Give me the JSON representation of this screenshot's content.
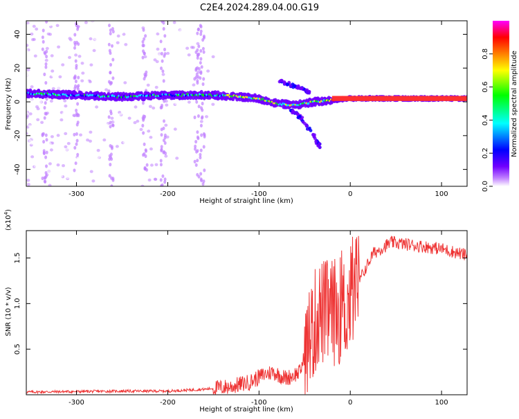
{
  "title": "C2E4.2024.289.04.00.G19",
  "chart_data": [
    {
      "type": "heatmap",
      "xlabel": "Height of straight line (km)",
      "ylabel": "Frequency (Hz)",
      "xlim": [
        -355,
        128
      ],
      "ylim": [
        -50,
        48
      ],
      "xticks": [
        -300,
        -200,
        -100,
        0,
        100
      ],
      "yticks": [
        -40,
        -20,
        0,
        20,
        40
      ],
      "colorbar": {
        "label": "Normalized spectral amplitude",
        "range": [
          0,
          1
        ],
        "ticks": [
          "0.0",
          "0.2",
          "0.4",
          "0.6",
          "0.8"
        ],
        "colors": [
          "#ffffff",
          "#c080ff",
          "#7000ff",
          "#0000ff",
          "#00ffff",
          "#00ff00",
          "#ffff00",
          "#ff8000",
          "#ff0000",
          "#ff00ff"
        ]
      },
      "ridge": [
        {
          "x": -355,
          "y": 5
        },
        {
          "x": -300,
          "y": 4
        },
        {
          "x": -250,
          "y": 3
        },
        {
          "x": -200,
          "y": 4
        },
        {
          "x": -150,
          "y": 4
        },
        {
          "x": -120,
          "y": 3
        },
        {
          "x": -100,
          "y": 2
        },
        {
          "x": -80,
          "y": -1
        },
        {
          "x": -60,
          "y": -2
        },
        {
          "x": -40,
          "y": 0
        },
        {
          "x": -20,
          "y": 1
        },
        {
          "x": 0,
          "y": 2
        },
        {
          "x": 128,
          "y": 2
        }
      ],
      "branch_up": [
        {
          "x": -80,
          "y": 13
        },
        {
          "x": -70,
          "y": 11
        },
        {
          "x": -60,
          "y": 9
        },
        {
          "x": -50,
          "y": 7
        },
        {
          "x": -45,
          "y": 5
        }
      ],
      "branch_down": [
        {
          "x": -65,
          "y": -5
        },
        {
          "x": -55,
          "y": -9
        },
        {
          "x": -45,
          "y": -16
        },
        {
          "x": -38,
          "y": -22
        },
        {
          "x": -33,
          "y": -27
        }
      ]
    },
    {
      "type": "line",
      "xlabel": "Height of straight line (km)",
      "ylabel": "SNR (10 * v/v)",
      "scale_label": "(x10",
      "scale_exp": "4",
      "scale_close": ")",
      "xlim": [
        -355,
        128
      ],
      "ylim": [
        0,
        1.8
      ],
      "xticks": [
        -300,
        -200,
        -100,
        0,
        100
      ],
      "yticks": [
        "0.5",
        "1.0",
        "1.5"
      ],
      "ytick_values": [
        0.5,
        1.0,
        1.5
      ],
      "color": "#ee3333",
      "envelope": [
        {
          "x": -355,
          "y": 0.03
        },
        {
          "x": -250,
          "y": 0.04
        },
        {
          "x": -200,
          "y": 0.04
        },
        {
          "x": -160,
          "y": 0.06
        },
        {
          "x": -130,
          "y": 0.09
        },
        {
          "x": -110,
          "y": 0.14
        },
        {
          "x": -95,
          "y": 0.22
        },
        {
          "x": -85,
          "y": 0.25
        },
        {
          "x": -70,
          "y": 0.18
        },
        {
          "x": -55,
          "y": 0.25
        },
        {
          "x": -45,
          "y": 0.6
        },
        {
          "x": -35,
          "y": 0.9
        },
        {
          "x": -20,
          "y": 0.9
        },
        {
          "x": -5,
          "y": 0.95
        },
        {
          "x": 10,
          "y": 1.25
        },
        {
          "x": 25,
          "y": 1.55
        },
        {
          "x": 45,
          "y": 1.67
        },
        {
          "x": 70,
          "y": 1.64
        },
        {
          "x": 100,
          "y": 1.6
        },
        {
          "x": 128,
          "y": 1.53
        }
      ]
    }
  ]
}
